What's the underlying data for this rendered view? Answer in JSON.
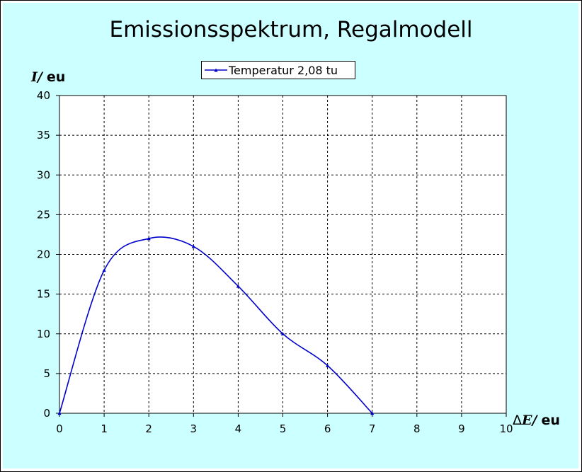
{
  "chart_data": {
    "type": "line",
    "title": "Emissionsspektrum, Regalmodell",
    "ylabel": {
      "symbol": "I",
      "sep": "/",
      "unit": "eu"
    },
    "xlabel": {
      "prefix": "Δ",
      "symbol": "E",
      "sep": "/",
      "unit": "eu"
    },
    "xlim": [
      0,
      10
    ],
    "ylim": [
      0,
      40
    ],
    "xticks": [
      0,
      1,
      2,
      3,
      4,
      5,
      6,
      7,
      8,
      9,
      10
    ],
    "yticks": [
      0,
      5,
      10,
      15,
      20,
      25,
      30,
      35,
      40
    ],
    "grid": true,
    "smooth": true,
    "legend_position": "top-center",
    "series": [
      {
        "name": "Temperatur 2,08 tu",
        "color": "#0000cc",
        "marker": "triangle",
        "x": [
          0,
          1,
          2,
          3,
          4,
          5,
          6,
          7
        ],
        "y": [
          0,
          18,
          22,
          21,
          16,
          10,
          6,
          0
        ]
      }
    ]
  },
  "colors": {
    "chart_area": "#ccffff",
    "plot_area": "#ffffff",
    "gridline": "#000000",
    "series": "#0000cc"
  }
}
